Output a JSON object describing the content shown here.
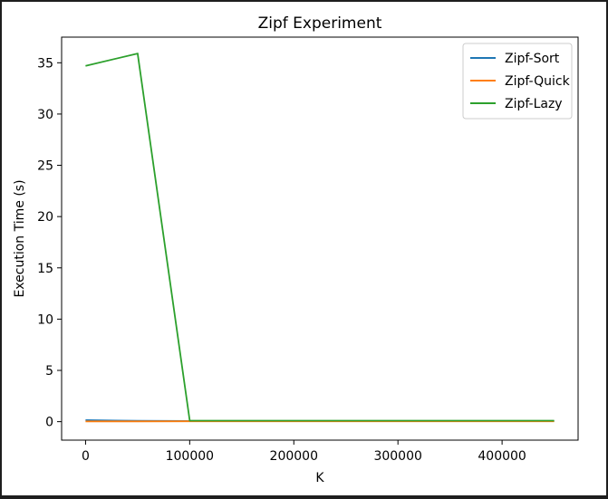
{
  "chart_data": {
    "type": "line",
    "title": "Zipf Experiment",
    "xlabel": "K",
    "ylabel": "Execution Time (s)",
    "xlim": [
      -23000,
      473000
    ],
    "ylim": [
      -1.8,
      37.5
    ],
    "xticks": [
      0,
      100000,
      200000,
      300000,
      400000
    ],
    "xtick_labels": [
      "0",
      "100000",
      "200000",
      "300000",
      "400000"
    ],
    "yticks": [
      0,
      5,
      10,
      15,
      20,
      25,
      30,
      35
    ],
    "ytick_labels": [
      "0",
      "5",
      "10",
      "15",
      "20",
      "25",
      "30",
      "35"
    ],
    "grid": false,
    "legend_position": "top-right",
    "x": [
      0,
      50000,
      100000,
      150000,
      200000,
      250000,
      300000,
      350000,
      400000,
      450000
    ],
    "series": [
      {
        "name": "Zipf-Sort",
        "color": "#1f77b4",
        "values": [
          0.15,
          0.08,
          0.06,
          0.06,
          0.06,
          0.06,
          0.06,
          0.06,
          0.06,
          0.06
        ]
      },
      {
        "name": "Zipf-Quick",
        "color": "#ff7f0e",
        "values": [
          0.03,
          0.03,
          0.04,
          0.04,
          0.04,
          0.04,
          0.04,
          0.04,
          0.04,
          0.04
        ]
      },
      {
        "name": "Zipf-Lazy",
        "color": "#2ca02c",
        "values": [
          34.7,
          35.9,
          0.1,
          0.1,
          0.1,
          0.1,
          0.1,
          0.1,
          0.1,
          0.1
        ]
      }
    ]
  }
}
